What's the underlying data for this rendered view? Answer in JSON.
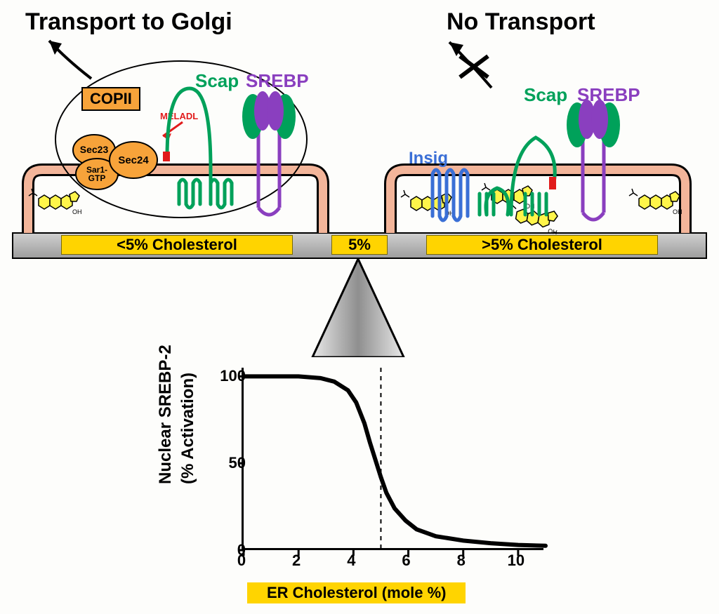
{
  "titles": {
    "left": "Transport to Golgi",
    "right": "No Transport"
  },
  "beam": {
    "left_label": "<5% Cholesterol",
    "right_label": ">5% Cholesterol",
    "center_label": "5%"
  },
  "proteins": {
    "scap": "Scap",
    "srebp": "SREBP",
    "insig": "Insig",
    "copii": "COPII",
    "meladl": "MELADL",
    "sec23": "Sec23",
    "sec24": "Sec24",
    "sar1": "Sar1-\nGTP"
  },
  "colors": {
    "scap": "#00a15a",
    "srebp": "#8a3fbf",
    "insig": "#3a6fd6",
    "copii_fill": "#f7a33a",
    "copii_text": "#000000",
    "membrane": "#f3b59a",
    "chol_fill": "#fff54a",
    "chol_stroke": "#000000",
    "beam_label_bg": "#ffd400",
    "meladl": "#e11b1b",
    "chart_line": "#000000",
    "chart_dash": "#000000"
  },
  "chart": {
    "type": "line",
    "title": "",
    "y_label_line1": "Nuclear SREBP-2",
    "y_label_line2": "(% Activation)",
    "x_label": "ER Cholesterol (mole %)",
    "xlim": [
      0,
      11
    ],
    "ylim": [
      0,
      105
    ],
    "xticks": [
      0,
      2,
      4,
      6,
      8,
      10
    ],
    "yticks": [
      0,
      50,
      100
    ],
    "dash_x": 5,
    "line_width": 6,
    "curve": [
      [
        0,
        100
      ],
      [
        1,
        100
      ],
      [
        2,
        100
      ],
      [
        2.8,
        99
      ],
      [
        3.3,
        97
      ],
      [
        3.8,
        92
      ],
      [
        4.1,
        85
      ],
      [
        4.4,
        73
      ],
      [
        4.6,
        62
      ],
      [
        4.8,
        52
      ],
      [
        5.0,
        42
      ],
      [
        5.2,
        33
      ],
      [
        5.5,
        24
      ],
      [
        5.9,
        17
      ],
      [
        6.3,
        12
      ],
      [
        7.0,
        8
      ],
      [
        8.0,
        5.5
      ],
      [
        9.0,
        4
      ],
      [
        10.0,
        3
      ],
      [
        11.0,
        2.5
      ]
    ],
    "label_fontsize": 24,
    "tick_fontsize": 22
  }
}
